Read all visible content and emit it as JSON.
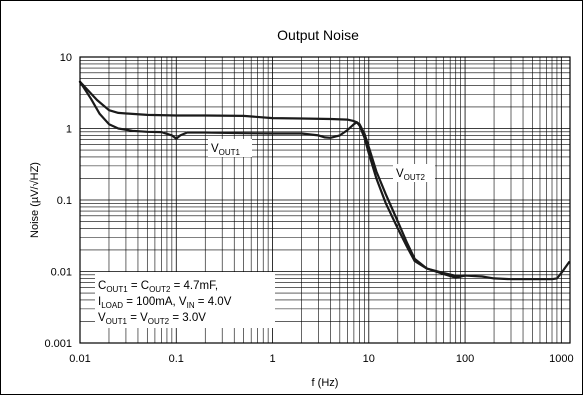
{
  "chart_data": {
    "type": "line",
    "title": "Output Noise",
    "xlabel": "f (Hz)",
    "ylabel": "Noise (µV/√HZ)",
    "xscale": "log",
    "yscale": "log",
    "xlim": [
      0.01,
      1000
    ],
    "ylim": [
      0.001,
      10
    ],
    "grid": true,
    "x_ticks": [
      "0.01",
      "0.1",
      "1",
      "10",
      "100",
      "1000"
    ],
    "y_ticks": [
      "0.001",
      "0.01",
      "0.1",
      "1",
      "10"
    ],
    "series": [
      {
        "label_main": "V",
        "label_sub": "OUT1",
        "x": [
          0.01,
          0.013,
          0.016,
          0.02,
          0.025,
          0.035,
          0.05,
          0.07,
          0.09,
          0.1,
          0.11,
          0.13,
          0.2,
          0.5,
          1,
          2,
          3,
          3.5,
          4,
          5,
          6,
          7,
          7.5,
          8,
          9,
          10,
          12,
          15,
          20,
          25,
          30,
          40,
          60,
          80,
          100,
          150,
          200,
          300,
          500,
          700,
          800,
          900,
          1000,
          1200
        ],
        "y": [
          4.5,
          2.6,
          1.6,
          1.15,
          1.0,
          0.93,
          0.9,
          0.89,
          0.8,
          0.72,
          0.8,
          0.88,
          0.88,
          0.86,
          0.85,
          0.85,
          0.8,
          0.75,
          0.74,
          0.8,
          0.95,
          1.15,
          1.22,
          1.15,
          0.85,
          0.55,
          0.25,
          0.12,
          0.05,
          0.025,
          0.015,
          0.011,
          0.0095,
          0.0087,
          0.0088,
          0.0085,
          0.008,
          0.0078,
          0.0078,
          0.0078,
          0.0078,
          0.008,
          0.0095,
          0.0135
        ]
      },
      {
        "label_main": "V",
        "label_sub": "OUT2",
        "x": [
          0.01,
          0.015,
          0.02,
          0.025,
          0.035,
          0.05,
          0.1,
          0.2,
          0.5,
          1,
          2,
          4,
          6,
          7,
          7.5,
          8,
          9,
          10,
          12,
          15,
          20,
          25,
          30,
          40,
          60,
          80,
          100
        ],
        "y": [
          4.5,
          2.5,
          1.8,
          1.65,
          1.6,
          1.55,
          1.52,
          1.52,
          1.5,
          1.4,
          1.38,
          1.36,
          1.33,
          1.27,
          1.22,
          1.1,
          0.75,
          0.45,
          0.2,
          0.09,
          0.04,
          0.022,
          0.014,
          0.011,
          0.0092,
          0.0082,
          0.0088
        ]
      }
    ],
    "annotation": {
      "line1": {
        "c": "C",
        "s1": "OUT1",
        "eq": " = C",
        "s2": "OUT2",
        "rest": " = 4.7mF,"
      },
      "line2": {
        "i": "I",
        "s1": "LOAD",
        "mid": " = 100mA, V",
        "s2": "IN",
        "rest": " = 4.0V"
      },
      "line3": {
        "v": "V",
        "s1": "OUT1",
        "eq": " = V",
        "s2": "OUT2",
        "rest": " = 3.0V"
      }
    }
  }
}
